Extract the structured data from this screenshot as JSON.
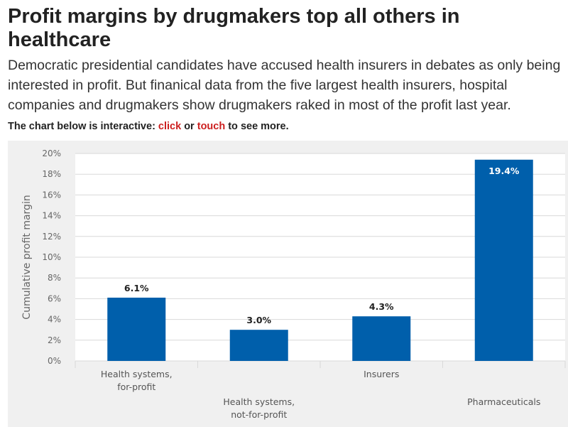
{
  "headline": "Profit margins by drugmakers top all others in healthcare",
  "subhead": "Democratic presidential candidates have accused health insurers in debates as only being interested in profit. But finanical data from the five largest health insurers, hospital companies and drugmakers show drugmakers raked in most of the profit last year.",
  "note": {
    "prefix": "The chart below is interactive: ",
    "click": "click",
    "middle": " or ",
    "touch": "touch",
    "suffix": " to see more."
  },
  "colors": {
    "bar": "#005fab",
    "link": "#cc1f1f",
    "grid": "#d9d9d9",
    "plot_bg": "#ffffff",
    "frame_bg": "#f0f0f0"
  },
  "chart_data": {
    "type": "bar",
    "title": "",
    "ylabel": "Cumulative profit margin",
    "xlabel": "",
    "ylim": [
      0,
      20
    ],
    "yticks": [
      0,
      2,
      4,
      6,
      8,
      10,
      12,
      14,
      16,
      18,
      20
    ],
    "ytick_labels": [
      "0%",
      "2%",
      "4%",
      "6%",
      "8%",
      "10%",
      "12%",
      "14%",
      "16%",
      "18%",
      "20%"
    ],
    "grid": true,
    "categories": [
      [
        "Health systems,",
        "for-profit"
      ],
      [
        "Health systems,",
        "not-for-profit"
      ],
      [
        "Insurers"
      ],
      [
        "Pharmaceuticals"
      ]
    ],
    "values": [
      6.1,
      3.0,
      4.3,
      19.4
    ],
    "value_labels": [
      "6.1%",
      "3.0%",
      "4.3%",
      "19.4%"
    ]
  }
}
